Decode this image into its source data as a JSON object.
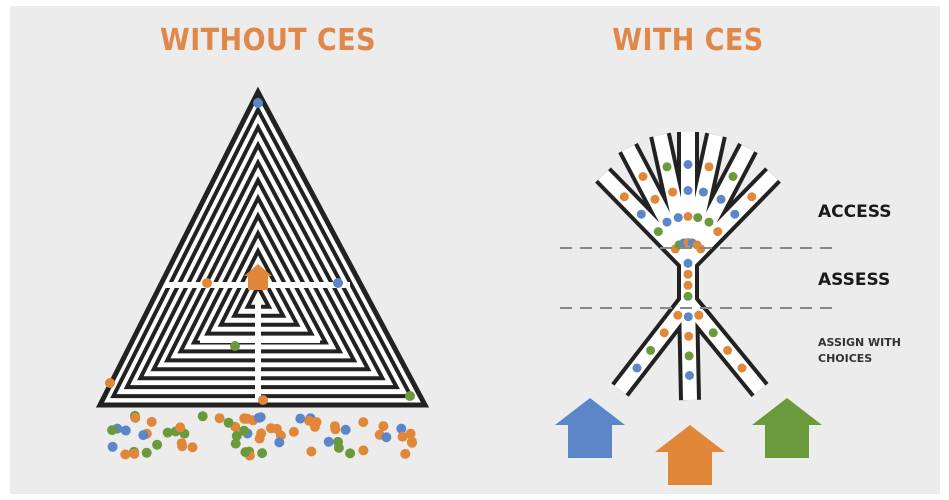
{
  "left": {
    "title": "WITHOUT CES"
  },
  "right": {
    "title": "WITH CES",
    "stages": [
      "ACCESS",
      "ASSESS"
    ],
    "assign": [
      "ASSIGN WITH",
      "CHOICES"
    ]
  }
}
